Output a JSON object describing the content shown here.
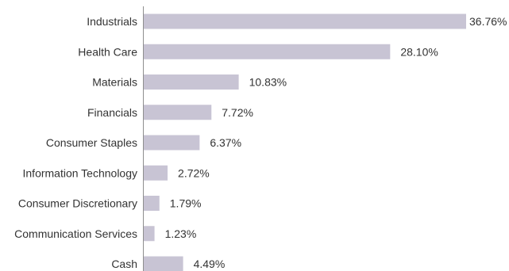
{
  "chart_data": {
    "type": "bar",
    "orientation": "horizontal",
    "categories": [
      "Industrials",
      "Health Care",
      "Materials",
      "Financials",
      "Consumer Staples",
      "Information Technology",
      "Consumer Discretionary",
      "Communication Services",
      "Cash"
    ],
    "values": [
      36.76,
      28.1,
      10.83,
      7.72,
      6.37,
      2.72,
      1.79,
      1.23,
      4.49
    ],
    "value_labels": [
      "36.76%",
      "28.10%",
      "10.83%",
      "7.72%",
      "6.37%",
      "2.72%",
      "1.79%",
      "1.23%",
      "4.49%"
    ],
    "title": "",
    "xlabel": "",
    "ylabel": "",
    "xlim": [
      0,
      36.76
    ],
    "grid": false,
    "legend": "none",
    "bar_color": "#c8c4d4",
    "axis_color": "#8e8e8e",
    "text_color": "#333333"
  }
}
